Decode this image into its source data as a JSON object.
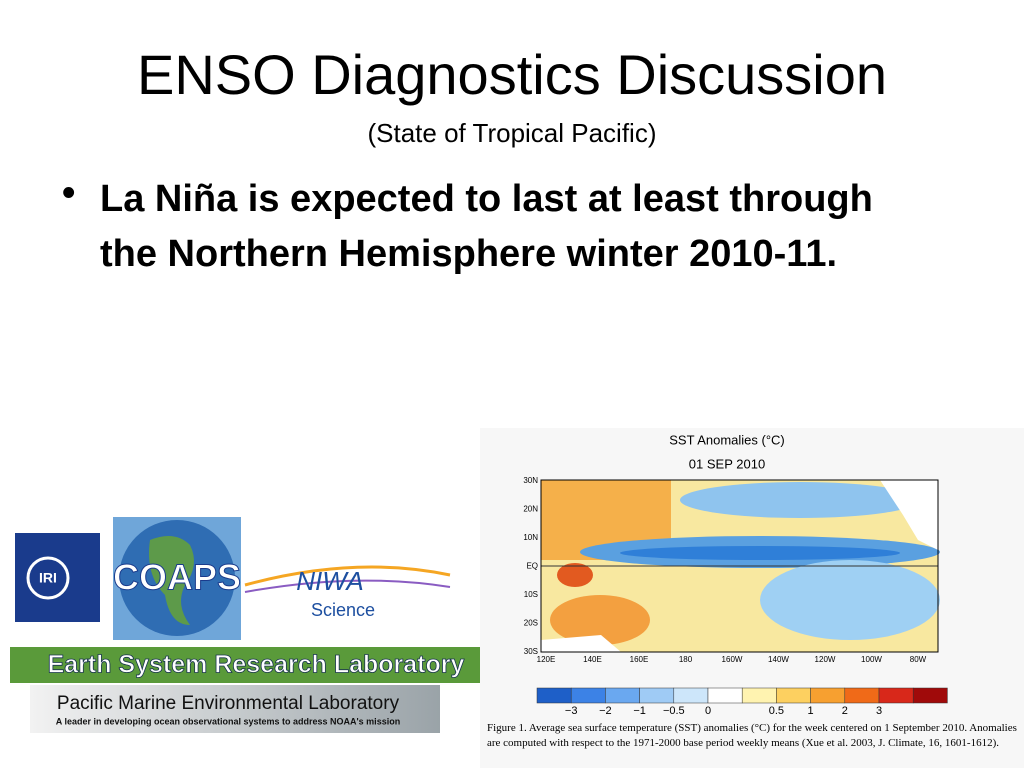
{
  "header": {
    "title": "ENSO Diagnostics Discussion",
    "subtitle": "(State of Tropical Pacific)"
  },
  "bullets": [
    "La Niña is expected to last at least through the Northern Hemisphere winter 2010-11."
  ],
  "logos": {
    "iri": "IRI",
    "coaps": "COAPS",
    "niwa": "NIWA",
    "niwa_sub": "Science",
    "esrl": "Earth System Research Laboratory",
    "pmel": "Pacific Marine Environmental Laboratory",
    "pmel_sub": "A leader in developing ocean observational systems to address NOAA's mission"
  },
  "figure": {
    "title": "SST Anomalies (°C)",
    "date": "01 SEP 2010",
    "lat_labels": [
      "30N",
      "20N",
      "10N",
      "EQ",
      "10S",
      "20S",
      "30S"
    ],
    "lon_labels": [
      "120E",
      "140E",
      "160E",
      "180",
      "160W",
      "140W",
      "120W",
      "100W",
      "80W"
    ],
    "colorbar_labels": [
      "−3",
      "−2",
      "−1",
      "−0.5",
      "0",
      "0.5",
      "1",
      "2",
      "3"
    ],
    "caption": "Figure 1. Average sea surface temperature (SST) anomalies (°C) for the week centered on 1 September 2010.   Anomalies are computed with respect to the 1971-2000 base period weekly means (Xue et al. 2003, J. Climate, 16, 1601-1612)."
  }
}
